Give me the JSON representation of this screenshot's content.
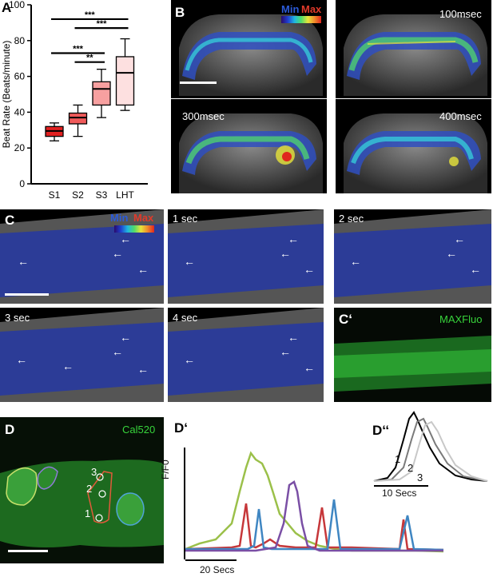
{
  "panel_letters": {
    "A": "A",
    "B": "B",
    "C": "C",
    "Cprime": "C‘",
    "D": "D",
    "Dprime": "D‘",
    "Ddprime": "D‘‘"
  },
  "colorbar": {
    "min": "Min",
    "max": "Max"
  },
  "panelB": {
    "labels": [
      "100msec",
      "300msec",
      "400msec"
    ]
  },
  "panelC": {
    "labels": [
      "1 sec",
      "2 sec",
      "3 sec",
      "4 sec"
    ],
    "cprime_label": "MAXFluo"
  },
  "panelD": {
    "label": "Cal520",
    "roi_numbers": [
      "3",
      "2",
      "1"
    ]
  },
  "panelDprime": {
    "ylabel": "F/F0",
    "scalebar": "20 Secs"
  },
  "panelDdprime": {
    "numbers": [
      "1",
      "2",
      "3"
    ],
    "scalebar": "10 Secs"
  },
  "colors": {
    "green": "#9bc04a",
    "red": "#c6373a",
    "blue": "#3f86c2",
    "purple": "#7a4fa5"
  },
  "chart_data": {
    "type": "boxplot",
    "ylabel": "Beat Rate (Beats/minute)",
    "xlabel": "",
    "ylim": [
      0,
      100
    ],
    "yticks": [
      "0",
      "20",
      "40",
      "60",
      "80",
      "100"
    ],
    "categories": [
      "S1",
      "S2",
      "S3",
      "LHT"
    ],
    "boxes": [
      {
        "category": "S1",
        "min": 24,
        "q1": 26.5,
        "median": 29.5,
        "q3": 32,
        "max": 34,
        "fill": "#e02020"
      },
      {
        "category": "S2",
        "min": 26.5,
        "q1": 33.5,
        "median": 37,
        "q3": 39.5,
        "max": 44,
        "fill": "#f05a5a"
      },
      {
        "category": "S3",
        "min": 37,
        "q1": 44,
        "median": 53,
        "q3": 57,
        "max": 64,
        "fill": "#f7a0a0"
      },
      {
        "category": "LHT",
        "min": 41,
        "q1": 44,
        "median": 62,
        "q3": 71,
        "max": 81,
        "fill": "#fde0e0"
      }
    ],
    "significance": [
      {
        "from": "S1",
        "to": "LHT",
        "label": "***",
        "y": 92
      },
      {
        "from": "S2",
        "to": "LHT",
        "label": "***",
        "y": 87
      },
      {
        "from": "S1",
        "to": "S3",
        "label": "***",
        "y": 73
      },
      {
        "from": "S2",
        "to": "S3",
        "label": "**",
        "y": 68
      }
    ]
  }
}
